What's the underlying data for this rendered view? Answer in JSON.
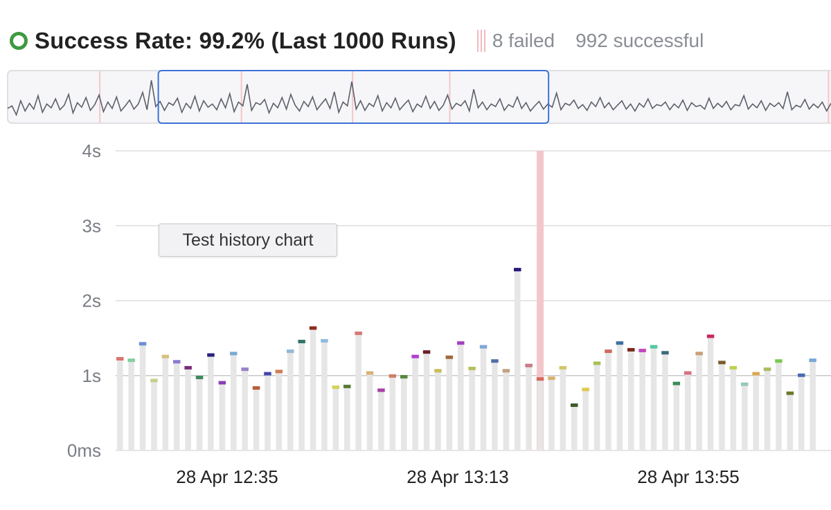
{
  "header": {
    "title": "Success Rate: 99.2% (Last 1000 Runs)",
    "failed_label": "8 failed",
    "successful_label": "992 successful",
    "status_color": "#3d9a3f",
    "failed_color": "#f1b9bd",
    "status_icon": "success-ring-icon"
  },
  "tooltip": {
    "text": "Test history chart"
  },
  "colors": {
    "bar": "#e6e6e6",
    "failed_band": "#f3c6ca",
    "grid": "#dddddd",
    "overview_line": "#5b5f6a",
    "selection": "#3d72d8"
  },
  "chart_data": [
    {
      "type": "line",
      "role": "overview",
      "selection_range_fraction": [
        0.183,
        0.657
      ],
      "failed_marker_fraction": [
        0.112,
        0.284,
        0.419,
        0.537,
        0.997
      ],
      "values": [
        40,
        44,
        30,
        52,
        36,
        48,
        39,
        60,
        34,
        47,
        41,
        55,
        38,
        45,
        62,
        33,
        49,
        42,
        57,
        37,
        46,
        61,
        35,
        50,
        40,
        58,
        36,
        44,
        53,
        39,
        47,
        65,
        38,
        84,
        43,
        51,
        37,
        49,
        45,
        56,
        34,
        48,
        40,
        59,
        36,
        52,
        42,
        47,
        38,
        55,
        41,
        63,
        35,
        50,
        44,
        78,
        37,
        49,
        46,
        54,
        33,
        48,
        41,
        57,
        39,
        62,
        45,
        36,
        51,
        43,
        58,
        38,
        47,
        55,
        40,
        66,
        34,
        50,
        44,
        82,
        39,
        52,
        37,
        48,
        43,
        60,
        36,
        49,
        41,
        56,
        38,
        46,
        53,
        35,
        47,
        42,
        59,
        40,
        51,
        37,
        45,
        61,
        39,
        48,
        44,
        52,
        36,
        70,
        41,
        50,
        38,
        47,
        43,
        55,
        37,
        46,
        42,
        58,
        40,
        49,
        36,
        44,
        51,
        39,
        47,
        42,
        64,
        38,
        48,
        45,
        53,
        40,
        46,
        37,
        50,
        43,
        57,
        41,
        49,
        38,
        45,
        52,
        39,
        47,
        36,
        48,
        42,
        55,
        40,
        46,
        44,
        50,
        38,
        47,
        41,
        53,
        37,
        49,
        43,
        45,
        39,
        56,
        40,
        48,
        42,
        51,
        38,
        46,
        44,
        60,
        39,
        47,
        41,
        52,
        37,
        48,
        43,
        49,
        40,
        66,
        38,
        45,
        42,
        54,
        39,
        47,
        41,
        50,
        36,
        48
      ]
    },
    {
      "type": "bar",
      "role": "detail",
      "ylabel": "",
      "y_ticks": [
        "0ms",
        "1s",
        "2s",
        "3s",
        "4s"
      ],
      "ylim": [
        0,
        4
      ],
      "x_ticks": [
        "28 Apr 12:35",
        "28 Apr 13:13",
        "28 Apr 13:55"
      ],
      "failed_bar_index": 37,
      "values": [
        1.22,
        1.2,
        1.42,
        0.93,
        1.25,
        1.18,
        1.1,
        0.97,
        1.27,
        0.9,
        1.29,
        1.08,
        0.83,
        1.02,
        1.05,
        1.32,
        1.45,
        1.63,
        1.46,
        0.84,
        0.85,
        1.56,
        1.03,
        0.8,
        0.99,
        0.98,
        1.25,
        1.31,
        1.06,
        1.24,
        1.43,
        1.09,
        1.38,
        1.19,
        1.06,
        2.41,
        1.13,
        0.95,
        0.96,
        1.1,
        0.6,
        0.81,
        1.16,
        1.32,
        1.43,
        1.34,
        1.33,
        1.38,
        1.3,
        0.89,
        1.03,
        1.29,
        1.52,
        1.17,
        1.1,
        0.88,
        1.02,
        1.08,
        1.19,
        0.76,
        1.0,
        1.2
      ],
      "cap_colors": [
        "#d9736e",
        "#82cfa0",
        "#6c8fd8",
        "#c3d08a",
        "#d7c27e",
        "#8b7ad0",
        "#7a2d7a",
        "#3f8a5b",
        "#2a237e",
        "#8a3fb5",
        "#7ea8d0",
        "#9b82c8",
        "#b85c35",
        "#4245a8",
        "#d07e58",
        "#93b8d4",
        "#34726c",
        "#8e2a1f",
        "#8fbbe0",
        "#d4d35a",
        "#5a7d35",
        "#d77878",
        "#d9b277",
        "#a83fa8",
        "#cf7f6a",
        "#558a3c",
        "#b03fd0",
        "#6a1f2a",
        "#cabd5a",
        "#a26a3a",
        "#a240c0",
        "#b8c05e",
        "#7fa7d8",
        "#4f6fa8",
        "#c2a080",
        "#2a1a7a",
        "#c97a86",
        "#d46a5a",
        "#d8b070",
        "#d2c86a",
        "#3a5a2a",
        "#e0c850",
        "#a8c058",
        "#cf6a60",
        "#3f6fa0",
        "#7a2a1a",
        "#c248c0",
        "#4fc8a0",
        "#3a6a7a",
        "#3a8a5a",
        "#d87080",
        "#caa078",
        "#c52a5a",
        "#7a5a2a",
        "#bfd050",
        "#97c8b8",
        "#d8a850",
        "#a8c060",
        "#7ac850",
        "#6a7a2a",
        "#4a6ab0",
        "#7aa8d8"
      ]
    }
  ]
}
